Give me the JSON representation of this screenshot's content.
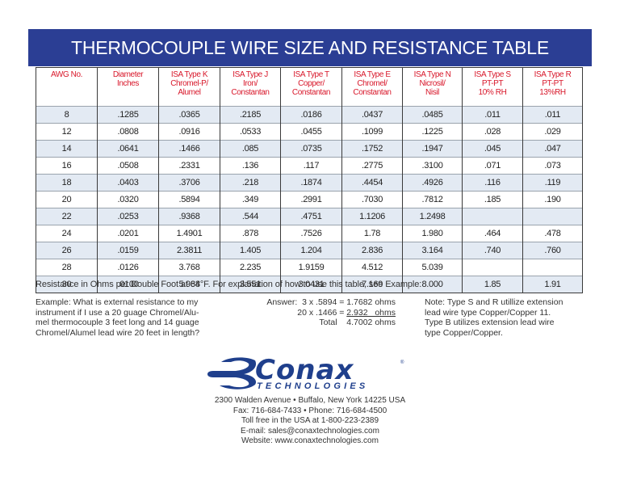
{
  "title": "THERMOCOUPLE WIRE SIZE AND RESISTANCE TABLE",
  "colors": {
    "banner": "#2b3e94",
    "header_text": "#d8172a",
    "row_shade": "#e3eaf3",
    "logo": "#1f3f8c"
  },
  "table": {
    "headers": [
      [
        "AWG No."
      ],
      [
        "Diameter",
        "Inches"
      ],
      [
        "ISA Type K",
        "Chromel-P/",
        "Alumel"
      ],
      [
        "ISA Type J",
        "Iron/",
        "Constantan"
      ],
      [
        "ISA Type T",
        "Copper/",
        "Constantan"
      ],
      [
        "ISA Type E",
        "Chromel/",
        "Constantan"
      ],
      [
        "ISA Type N",
        "Nicrosil/",
        "Nisil"
      ],
      [
        "ISA Type S",
        "PT-PT",
        "10% RH"
      ],
      [
        "ISA Type R",
        "PT-PT",
        "13%RH"
      ]
    ],
    "rows": [
      [
        "8",
        ".1285",
        ".0365",
        ".2185",
        ".0186",
        ".0437",
        ".0485",
        ".011",
        ".011"
      ],
      [
        "12",
        ".0808",
        ".0916",
        ".0533",
        ".0455",
        ".1099",
        ".1225",
        ".028",
        ".029"
      ],
      [
        "14",
        ".0641",
        ".1466",
        ".085",
        ".0735",
        ".1752",
        ".1947",
        ".045",
        ".047"
      ],
      [
        "16",
        ".0508",
        ".2331",
        ".136",
        ".117",
        ".2775",
        ".3100",
        ".071",
        ".073"
      ],
      [
        "18",
        ".0403",
        ".3706",
        ".218",
        ".1874",
        ".4454",
        ".4926",
        ".116",
        ".119"
      ],
      [
        "20",
        ".0320",
        ".5894",
        ".349",
        ".2991",
        ".7030",
        ".7812",
        ".185",
        ".190"
      ],
      [
        "22",
        ".0253",
        ".9368",
        ".544",
        ".4751",
        "1.1206",
        "1.2498",
        "",
        ""
      ],
      [
        "24",
        ".0201",
        "1.4901",
        ".878",
        ".7526",
        "1.78",
        "1.980",
        ".464",
        ".478"
      ],
      [
        "26",
        ".0159",
        "2.3811",
        "1.405",
        "1.204",
        "2.836",
        "3.164",
        ".740",
        ".760"
      ],
      [
        "28",
        ".0126",
        "3.768",
        "2.235",
        "1.9159",
        "4.512",
        "5.039",
        "",
        ""
      ],
      [
        "30",
        ".0100",
        "5.984",
        "3.551",
        "3.0431",
        "7.169",
        "8.000",
        "1.85",
        "1.91"
      ]
    ]
  },
  "caption": "Resistance in Ohms per Double Foot at 68°F.  For explanation of how to use this table, see Example:",
  "example": {
    "lines": [
      "Example:  What is external resistance to my",
      "instrument if I use a 20 guage Chromel/Alu-",
      "mel thermocouple 3 feet long and 14 guage",
      "Chromel/Alumel lead wire 20 feet in length?"
    ]
  },
  "answer": {
    "line1_prefix": "Answer:  3 x .5894 = ",
    "line1_value": "1.7682 ohms",
    "line2_prefix": "20 x .1466 = ",
    "line2_value": "2.932   ohms",
    "line3_label": "Total    ",
    "line3_value": "4.7002 ohms"
  },
  "note": {
    "lines": [
      "Note: Type S and R utillize extension",
      "lead wire type Copper/Copper 11.",
      "Type B utilizes extension lead wire",
      "type Copper/Copper."
    ]
  },
  "logo": {
    "word": "Conax",
    "registered": "®",
    "sub": "TECHNOLOGIES",
    "icon": "conax-c-swoosh-icon"
  },
  "contact": {
    "address": "2300 Walden Avenue • Buffalo, New York  14225 USA",
    "phones": "Fax: 716-684-7433 • Phone: 716-684-4500",
    "tollfree": "Toll free in the USA at 1-800-223-2389",
    "email": "E-mail: sales@conaxtechnologies.com",
    "website": "Website: www.conaxtechnologies.com"
  }
}
